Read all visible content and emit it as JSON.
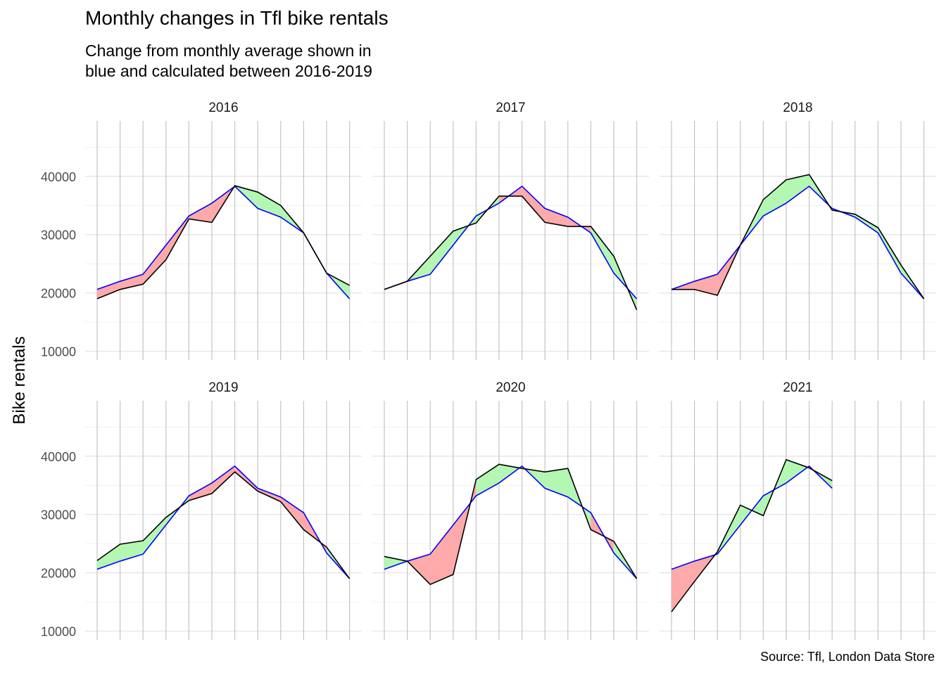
{
  "title": "Monthly changes in Tfl bike rentals",
  "subtitle": {
    "line1": "Change from monthly average shown in",
    "line2": "blue and calculated between 2016-2019"
  },
  "caption": "Source: Tfl, London Data Store",
  "chart_data": {
    "type": "line",
    "ylabel": "Bike rentals",
    "yticks": [
      10000,
      20000,
      30000,
      40000
    ],
    "ylim": [
      8500,
      49500
    ],
    "months": 12,
    "grid": true,
    "colors": {
      "expected": "#0000ff",
      "actual": "#000000",
      "above": "#b3f7b3",
      "below": "#ffaaaa",
      "grid": "#e3e3e3"
    },
    "expected": [
      20600,
      22000,
      23200,
      28200,
      33200,
      35400,
      38300,
      34500,
      33000,
      30300,
      23400,
      19000
    ],
    "facets": [
      {
        "year": "2016",
        "actual": [
          19000,
          20600,
          21500,
          25700,
          32700,
          32100,
          38400,
          37300,
          35000,
          30300,
          23400,
          21300
        ]
      },
      {
        "year": "2017",
        "actual": [
          20600,
          22000,
          26300,
          30600,
          32000,
          36600,
          36600,
          32100,
          31400,
          31400,
          26300,
          17100
        ]
      },
      {
        "year": "2018",
        "actual": [
          20600,
          20600,
          19600,
          28200,
          36000,
          39400,
          40300,
          34200,
          33500,
          31200,
          24800,
          19000
        ]
      },
      {
        "year": "2019",
        "actual": [
          22100,
          24900,
          25500,
          29500,
          32400,
          33600,
          37300,
          34000,
          32200,
          27400,
          24400,
          19000
        ]
      },
      {
        "year": "2020",
        "actual": [
          22800,
          22000,
          18000,
          19700,
          36000,
          38600,
          37900,
          37300,
          37900,
          27400,
          25400,
          19000
        ]
      },
      {
        "year": "2021",
        "actual": [
          13300,
          18500,
          23600,
          31600,
          29800,
          39400,
          38000,
          35800
        ]
      }
    ]
  }
}
